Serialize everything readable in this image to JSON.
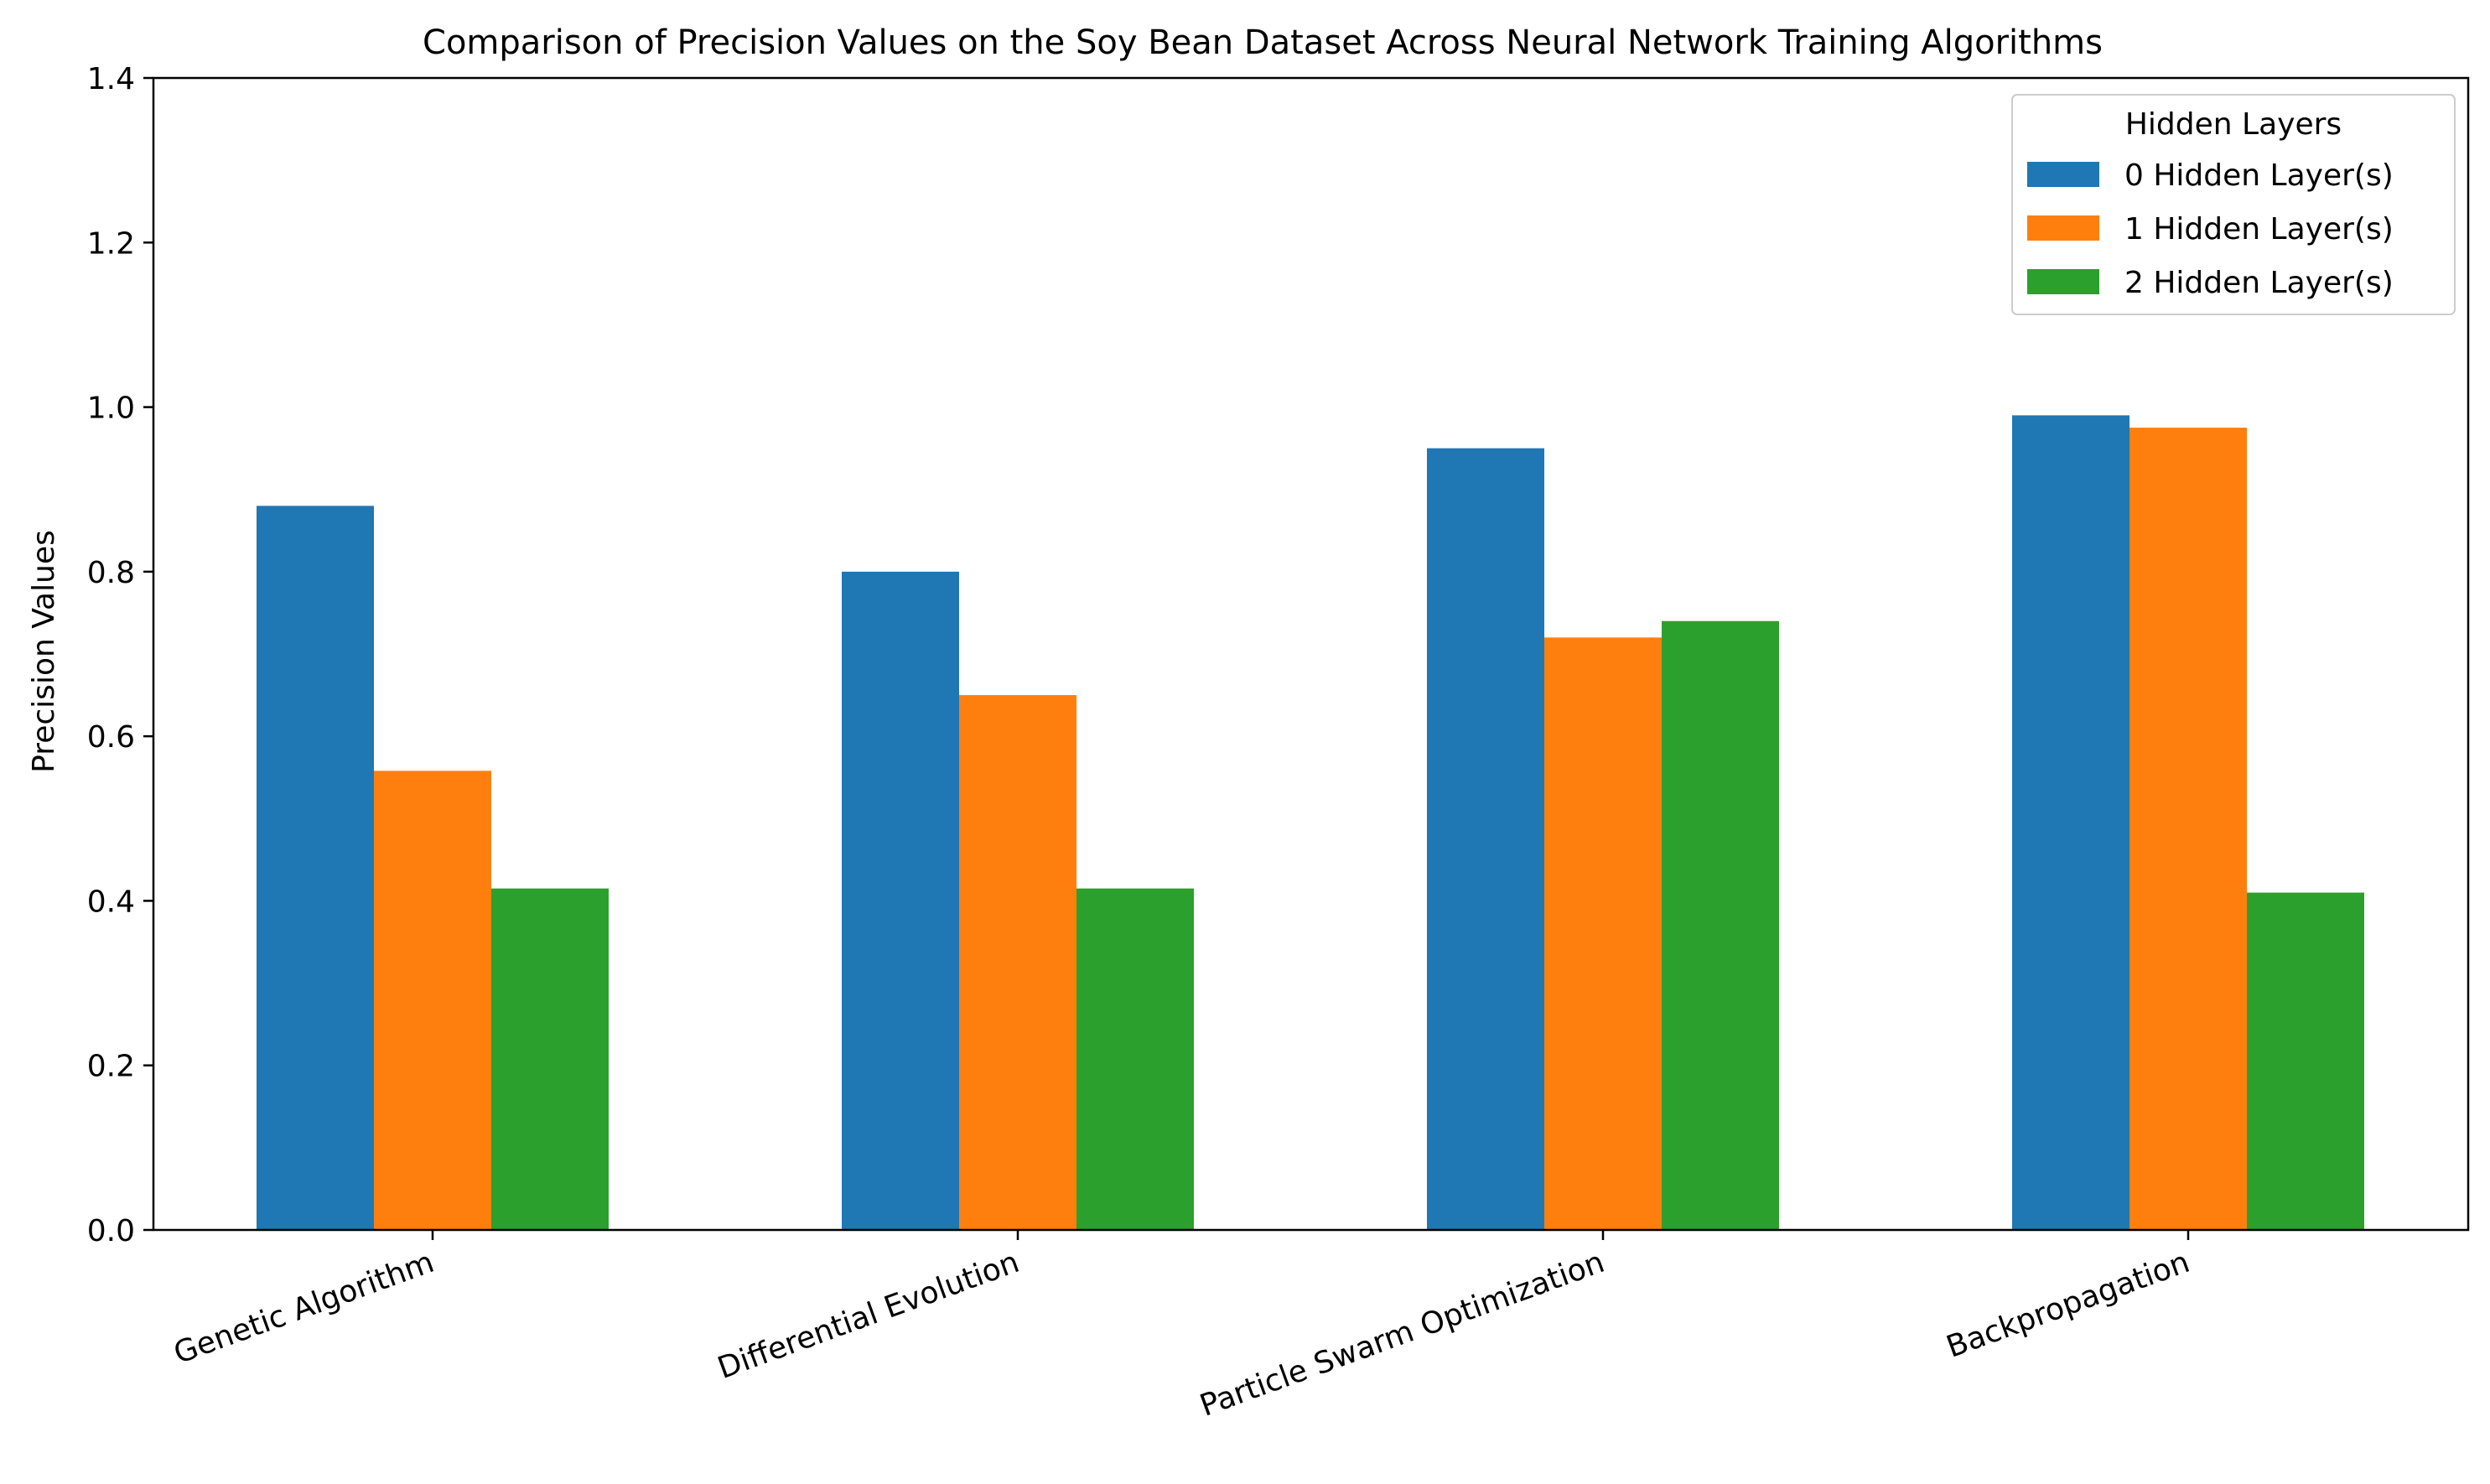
{
  "chart_data": {
    "type": "bar",
    "title": "Comparison of Precision Values on the Soy Bean Dataset Across Neural Network Training Algorithms",
    "xlabel": "",
    "ylabel": "Precision Values",
    "ylim": [
      0,
      1.4
    ],
    "yticks": [
      "0.0",
      "0.2",
      "0.4",
      "0.6",
      "0.8",
      "1.0",
      "1.2",
      "1.4"
    ],
    "categories": [
      "Genetic Algorithm",
      "Differential Evolution",
      "Particle Swarm Optimization",
      "Backpropagation"
    ],
    "series": [
      {
        "name": "0 Hidden Layer(s)",
        "color": "#1f77b4",
        "values": [
          0.88,
          0.8,
          0.95,
          0.99
        ]
      },
      {
        "name": "1 Hidden Layer(s)",
        "color": "#ff7f0e",
        "values": [
          0.558,
          0.65,
          0.72,
          0.975
        ]
      },
      {
        "name": "2 Hidden Layer(s)",
        "color": "#2ca02c",
        "values": [
          0.415,
          0.415,
          0.74,
          0.41
        ]
      }
    ],
    "legend": {
      "title": "Hidden Layers",
      "position": "top-right"
    },
    "grid": false
  }
}
